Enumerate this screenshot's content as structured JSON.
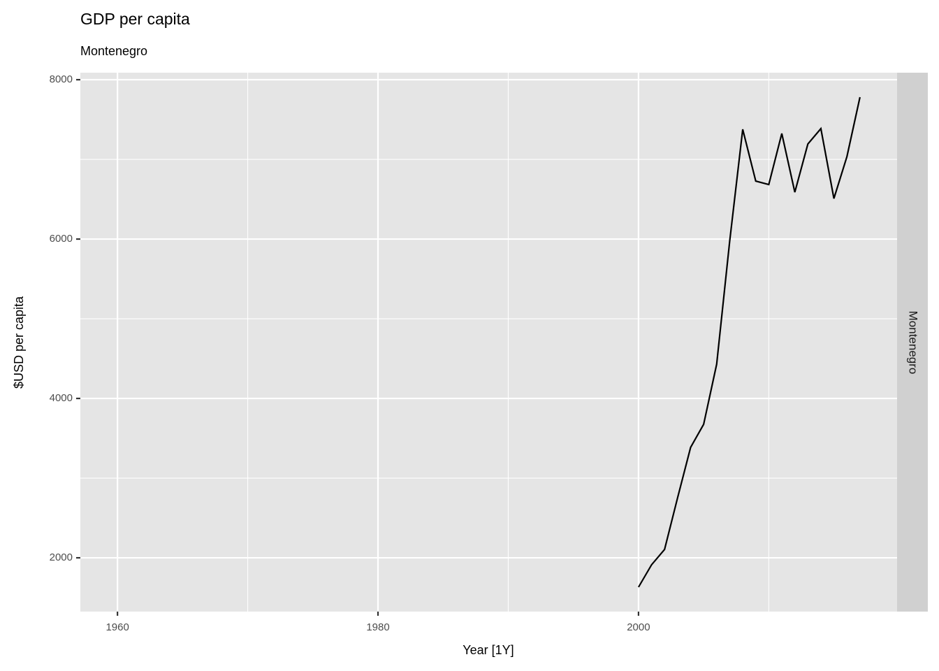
{
  "chart_data": {
    "type": "line",
    "title": "GDP per capita",
    "subtitle": "Montenegro",
    "x_label": "Year [1Y]",
    "y_label": "$USD per capita",
    "facet_label": "Montenegro",
    "x": [
      2000,
      2001,
      2002,
      2003,
      2004,
      2005,
      2006,
      2007,
      2008,
      2009,
      2010,
      2011,
      2012,
      2013,
      2014,
      2015,
      2016,
      2017
    ],
    "series": [
      {
        "color": "#000000",
        "values": [
          1632,
          1912,
          2105,
          2754,
          3386,
          3675,
          4430,
          5974,
          7377,
          6728,
          6684,
          7325,
          6588,
          7193,
          7386,
          6509,
          7035,
          7781
        ]
      }
    ],
    "xlim": [
      1957.15,
      2019.85
    ],
    "ylim": [
      1325,
      8088
    ],
    "xticks": [
      1960,
      1980,
      2000
    ],
    "yticks": [
      2000,
      4000,
      6000,
      8000
    ],
    "minor_xticks": [
      1970,
      1990,
      2010
    ],
    "minor_yticks": [
      3000,
      5000,
      7000
    ],
    "grid": true
  }
}
